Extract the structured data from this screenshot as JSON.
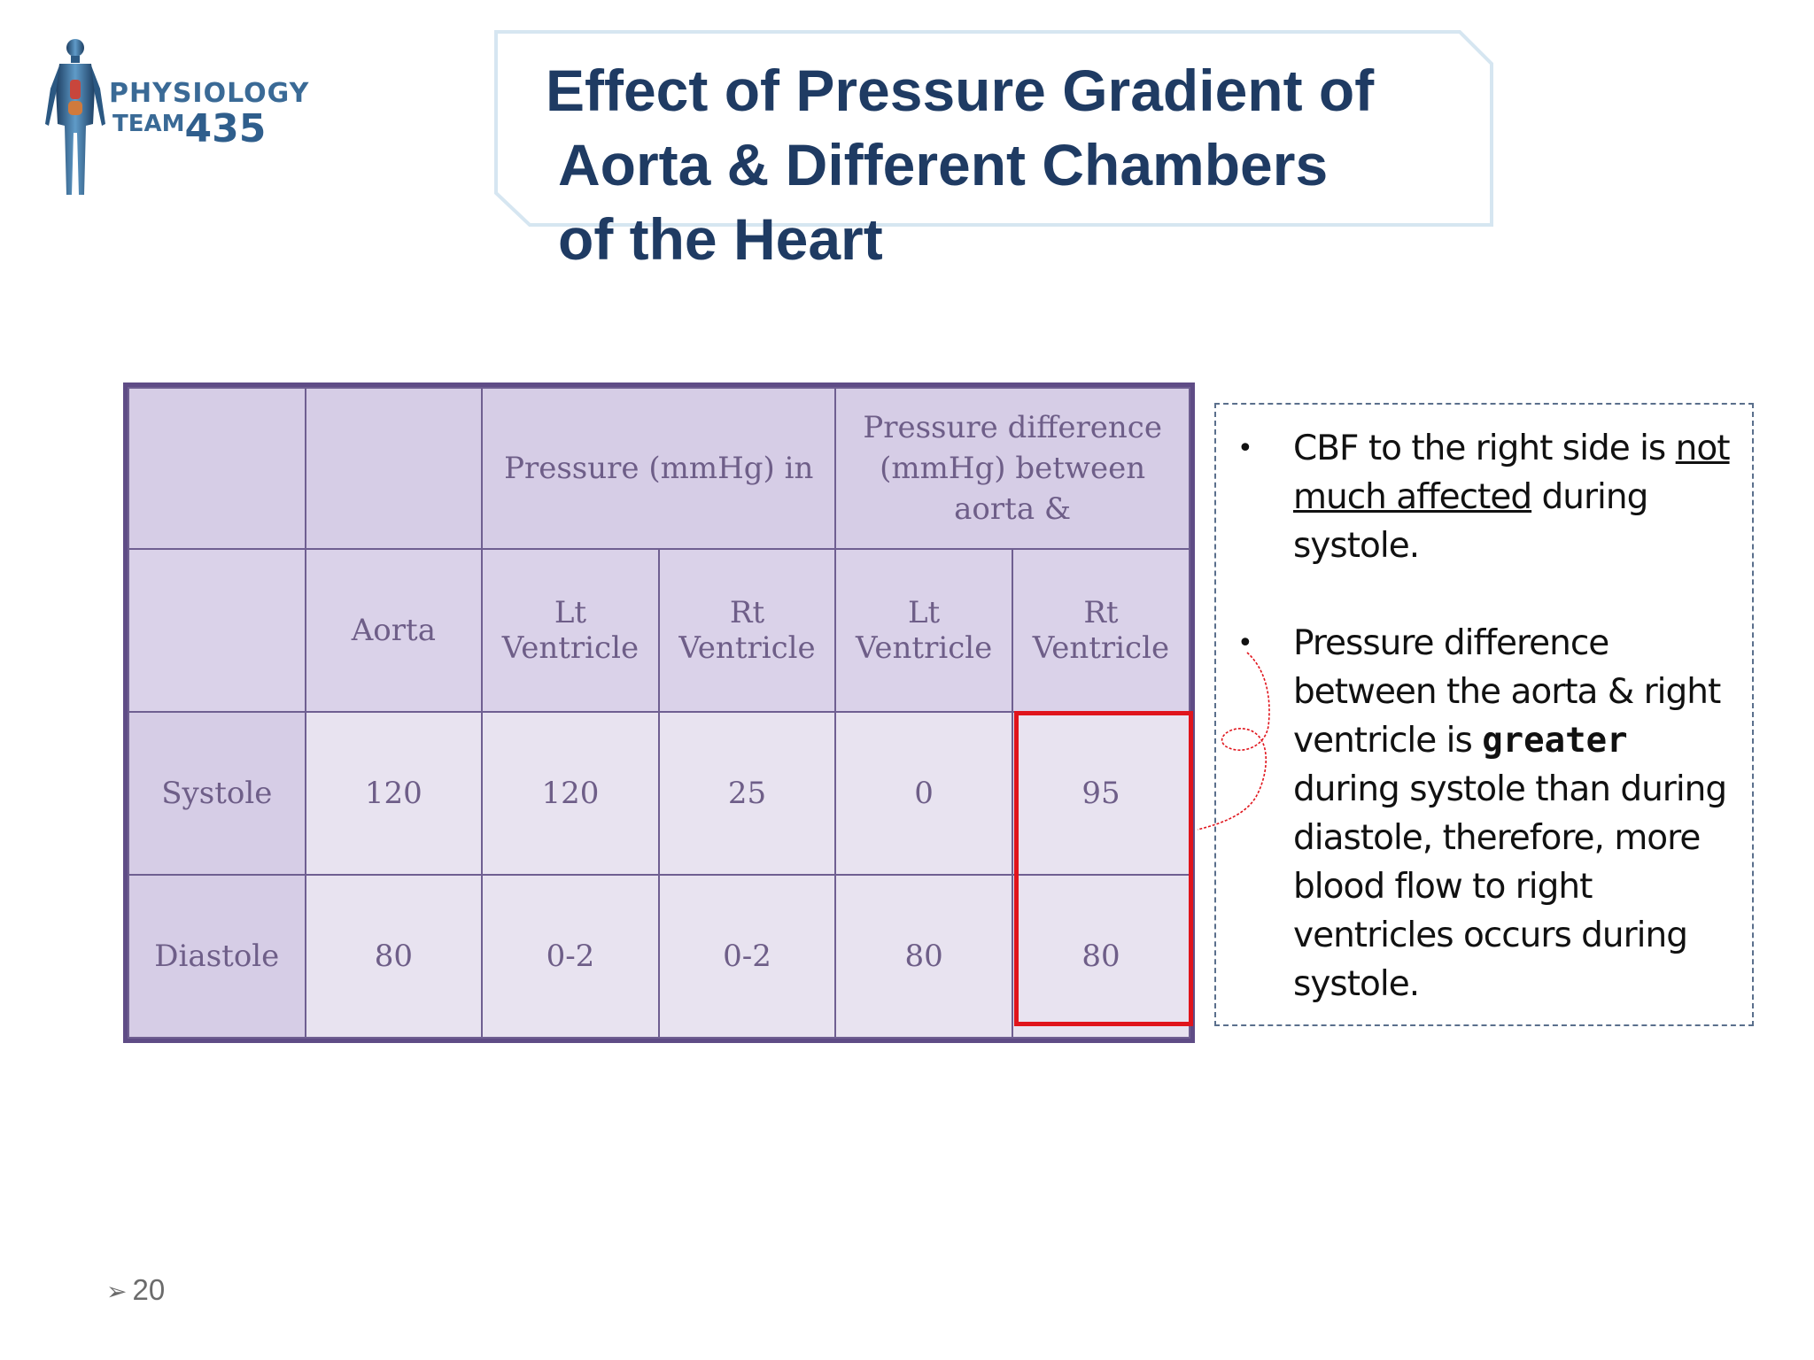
{
  "logo": {
    "line1": "PHYSIOLOGY",
    "line2_text": "TEAM",
    "line2_number": "435"
  },
  "title": {
    "line1": "Effect of Pressure Gradient of",
    "line2": "Aorta  & Different Chambers",
    "line3": "of the Heart"
  },
  "table": {
    "header_group_pressure": "Pressure (mmHg) in",
    "header_group_difference": "Pressure difference (mmHg) between aorta &",
    "columns": [
      "Aorta",
      "Lt Ventricle",
      "Rt Ventricle",
      "Lt Ventricle",
      "Rt Ventricle"
    ],
    "rows": [
      {
        "label": "Systole",
        "values": [
          "120",
          "120",
          "25",
          "0",
          "95"
        ]
      },
      {
        "label": "Diastole",
        "values": [
          "80",
          "0-2",
          "0-2",
          "80",
          "80"
        ]
      }
    ]
  },
  "notes": {
    "bullet_symbol": "•",
    "item1": {
      "part1": "CBF  to the right side is ",
      "underlined": "not much affected",
      "part2": " during systole."
    },
    "item2": {
      "part1": "Pressure difference between the aorta & right ventricle is ",
      "bold": "greater",
      "part2": " during systole than during diastole, therefore, more blood flow to right ventricles occurs during systole."
    }
  },
  "footer": {
    "arrow": "➢",
    "page_number": "20"
  },
  "colors": {
    "title": "#1f3b63",
    "highlight_box": "#e0141c",
    "table_border": "#5f4c86",
    "table_text": "#6e5e88"
  }
}
